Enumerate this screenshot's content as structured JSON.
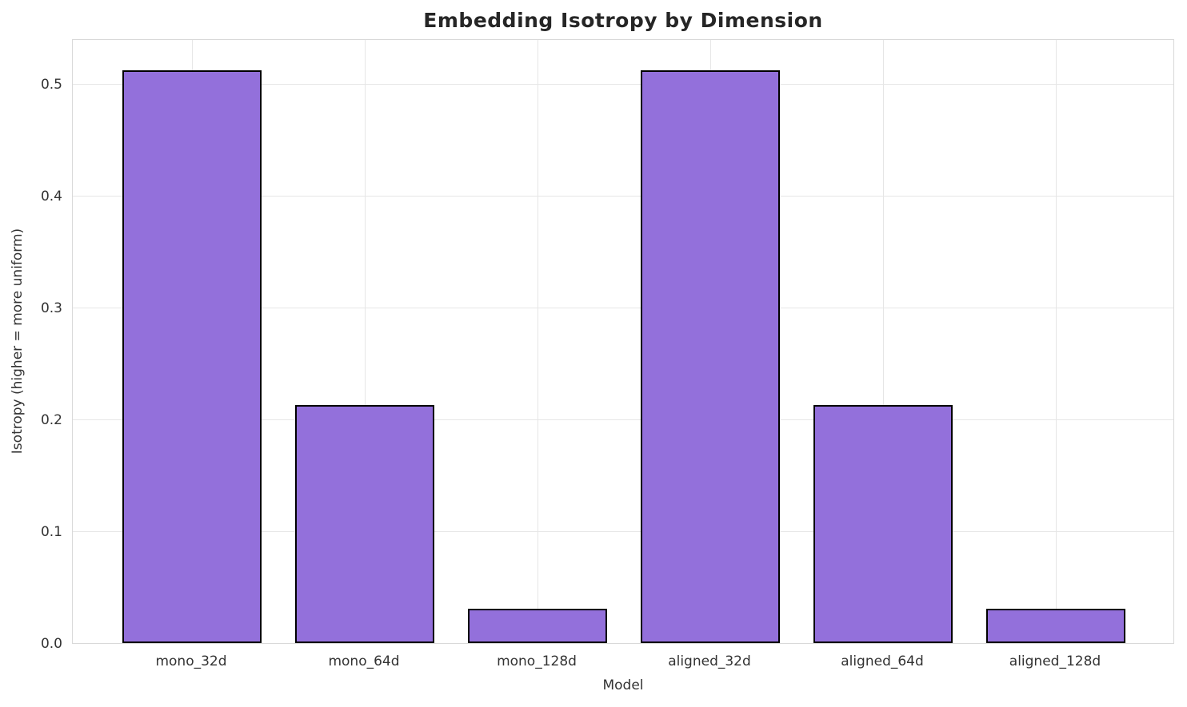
{
  "chart_data": {
    "type": "bar",
    "title": "Embedding Isotropy by Dimension",
    "xlabel": "Model",
    "ylabel": "Isotropy (higher = more uniform)",
    "categories": [
      "mono_32d",
      "mono_64d",
      "mono_128d",
      "aligned_32d",
      "aligned_64d",
      "aligned_128d"
    ],
    "values": [
      0.512,
      0.213,
      0.031,
      0.512,
      0.213,
      0.031
    ],
    "yticks": [
      0.0,
      0.1,
      0.2,
      0.3,
      0.4,
      0.5
    ],
    "ytick_labels": [
      "0.0",
      "0.1",
      "0.2",
      "0.3",
      "0.4",
      "0.5"
    ],
    "ylim": [
      0,
      0.54
    ],
    "grid": true,
    "legend": "none",
    "bar_color": "#9370DB",
    "bar_edge_color": "#000000",
    "grid_color": "#e6e6e6",
    "axes_border_color": "#d9d9d9",
    "tick_text_color": "#333333",
    "title_color": "#262626",
    "background_color": "#ffffff"
  }
}
